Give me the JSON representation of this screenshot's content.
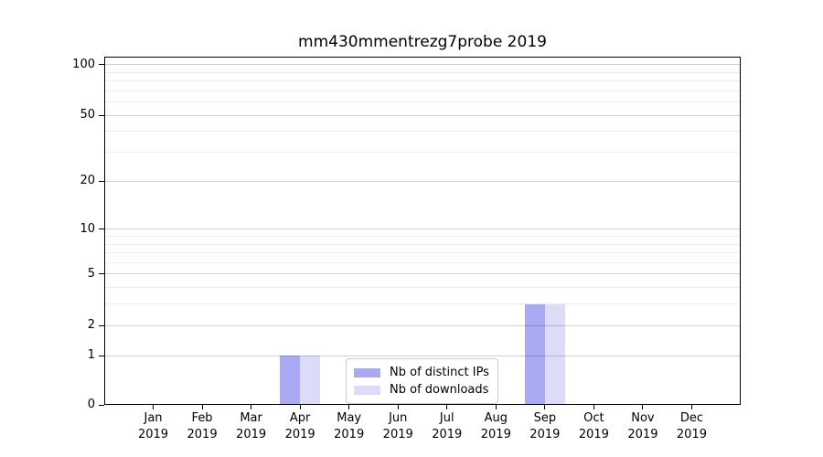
{
  "chart_data": {
    "type": "bar",
    "title": "mm430mmentrezg7probe 2019",
    "categories": [
      "Jan",
      "Feb",
      "Mar",
      "Apr",
      "May",
      "Jun",
      "Jul",
      "Aug",
      "Sep",
      "Oct",
      "Nov",
      "Dec"
    ],
    "year_label": "2019",
    "series": [
      {
        "name": "Nb of distinct IPs",
        "color": "#a9a9f4",
        "values": [
          0,
          0,
          0,
          1,
          0,
          0,
          0,
          0,
          3,
          0,
          0,
          0
        ]
      },
      {
        "name": "Nb of downloads",
        "color": "#dcdcf9",
        "values": [
          0,
          0,
          0,
          1,
          0,
          0,
          0,
          0,
          3,
          0,
          0,
          0
        ]
      }
    ],
    "yscale": "log1p",
    "ylim": [
      0,
      111
    ],
    "yticks": [
      0,
      1,
      2,
      5,
      10,
      20,
      50,
      100
    ],
    "yticks_minor": [
      3,
      4,
      6,
      7,
      8,
      9,
      30,
      40,
      60,
      70,
      80,
      90
    ],
    "grid": "horizontal-major-and-minor",
    "legend_position": "lower center"
  }
}
